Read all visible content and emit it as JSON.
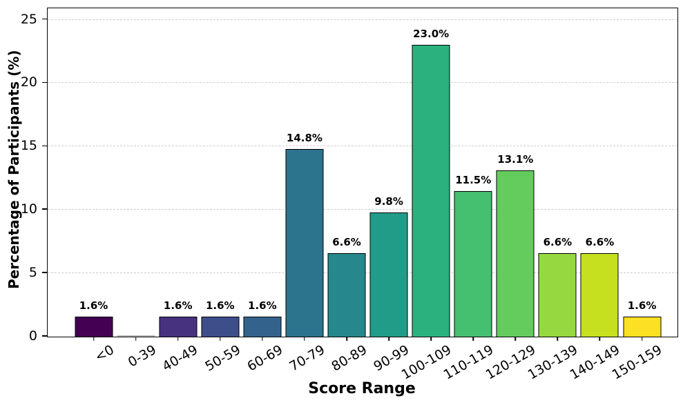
{
  "chart_data": {
    "type": "bar",
    "title": "",
    "xlabel": "Score Range",
    "ylabel": "Percentage of Participants (%)",
    "categories": [
      "<0",
      "0-39",
      "40-49",
      "50-59",
      "60-69",
      "70-79",
      "80-89",
      "90-99",
      "100-109",
      "110-119",
      "120-129",
      "130-139",
      "140-149",
      "150-159"
    ],
    "values": [
      1.6,
      0.0,
      1.6,
      1.6,
      1.6,
      14.8,
      6.6,
      9.8,
      23.0,
      11.5,
      13.1,
      6.6,
      6.6,
      1.6
    ],
    "bar_labels": [
      "1.6%",
      "",
      "1.6%",
      "1.6%",
      "1.6%",
      "14.8%",
      "6.6%",
      "9.8%",
      "23.0%",
      "11.5%",
      "13.1%",
      "6.6%",
      "6.6%",
      "1.6%"
    ],
    "bar_colors": [
      "#440154",
      "#46085c",
      "#46327e",
      "#3d4e8a",
      "#33638d",
      "#2c738e",
      "#26888c",
      "#219c89",
      "#2bb17e",
      "#45bf70",
      "#64cb5d",
      "#95d840",
      "#c6e020",
      "#fbe023"
    ],
    "bar_edge_color": "#000000",
    "zero_bar_color": "#b9b9b9",
    "grid_color": "#cccccc",
    "ylim": [
      0,
      25.9
    ],
    "yticks": [
      0,
      5,
      10,
      15,
      20,
      25
    ],
    "ytick_labels": [
      "0",
      "5",
      "10",
      "15",
      "20",
      "25"
    ],
    "xtick_rotation_deg": 30,
    "grid": "horizontal-dashed",
    "legend": "none"
  }
}
